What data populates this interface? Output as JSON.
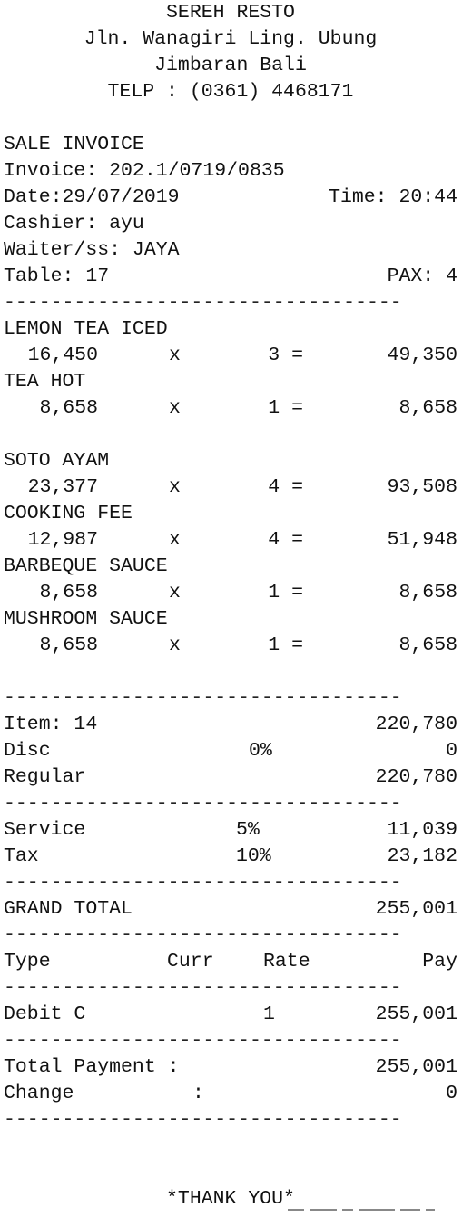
{
  "header": {
    "name": "SEREH RESTO",
    "address1": "Jln. Wanagiri Ling. Ubung",
    "address2": "Jimbaran Bali",
    "phone": "TELP : (0361) 4468171"
  },
  "info": {
    "title": "SALE INVOICE",
    "invoice": "Invoice: 202.1/0719/0835",
    "date": "Date:29/07/2019",
    "time": "Time: 20:44",
    "cashier": "Cashier: ayu",
    "waiter": "Waiter/ss: JAYA",
    "table": "Table: 17",
    "pax": "PAX: 4"
  },
  "separator": "----------------------------------",
  "items": [
    {
      "name": "LEMON TEA ICED",
      "price": "16,450",
      "x": "x",
      "qty": "3 =",
      "total": "49,350"
    },
    {
      "name": "TEA HOT",
      "price": "8,658",
      "x": "x",
      "qty": "1 =",
      "total": "8,658"
    },
    {
      "name": "SOTO AYAM",
      "price": "23,377",
      "x": "x",
      "qty": "4 =",
      "total": "93,508"
    },
    {
      "name": "COOKING FEE",
      "price": "12,987",
      "x": "x",
      "qty": "4 =",
      "total": "51,948"
    },
    {
      "name": "BARBEQUE SAUCE",
      "price": "8,658",
      "x": "x",
      "qty": "1 =",
      "total": "8,658"
    },
    {
      "name": "MUSHROOM SAUCE",
      "price": "8,658",
      "x": "x",
      "qty": "1 =",
      "total": "8,658"
    }
  ],
  "summary": {
    "item_label": "Item: 14",
    "item_value": "220,780",
    "disc_label": "Disc",
    "disc_pct": "0%",
    "disc_value": "0",
    "regular_label": "Regular",
    "regular_value": "220,780",
    "service_label": "Service",
    "service_pct": "5%",
    "service_value": "11,039",
    "tax_label": "Tax",
    "tax_pct": "10%",
    "tax_value": "23,182",
    "grand_label": "GRAND TOTAL",
    "grand_value": "255,001"
  },
  "payment": {
    "col_type": "Type",
    "col_curr": "Curr",
    "col_rate": "Rate",
    "col_pay": "Pay",
    "type": "Debit C",
    "rate": "1",
    "pay": "255,001",
    "total_label": "Total Payment :",
    "total_value": "255,001",
    "change_label": "Change",
    "change_colon": ":",
    "change_value": "0"
  },
  "footer": {
    "thanks": "*THANK YOU*"
  }
}
